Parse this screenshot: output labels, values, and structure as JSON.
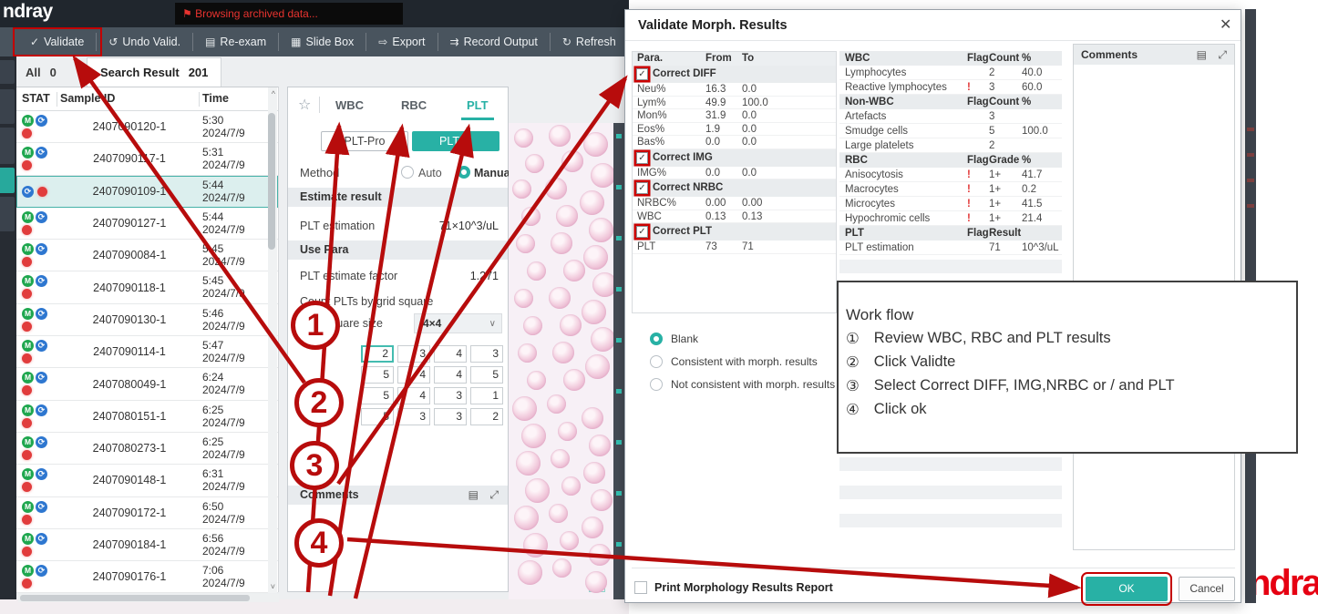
{
  "topbar": {
    "logo": "ndray",
    "flag": "⚑",
    "notice": "Browsing archived data..."
  },
  "toolbar": {
    "items": [
      {
        "name": "toolbar-button-validate",
        "icon_name": "validate-icon",
        "icon": "✓",
        "label": "Validate",
        "validate": true
      },
      {
        "name": "toolbar-button-undo-validate",
        "icon_name": "undo-validate-icon",
        "icon": "↺",
        "label": "Undo Valid."
      },
      {
        "name": "toolbar-button-re-exam",
        "icon_name": "re-exam-icon",
        "icon": "▤",
        "label": "Re-exam"
      },
      {
        "name": "toolbar-button-slide-box",
        "icon_name": "slide-box-icon",
        "icon": "▦",
        "label": "Slide Box"
      },
      {
        "name": "toolbar-button-export",
        "icon_name": "export-icon",
        "icon": "⇨",
        "label": "Export"
      },
      {
        "name": "toolbar-button-record-output",
        "icon_name": "record-output-icon",
        "icon": "⇉",
        "label": "Record Output"
      },
      {
        "name": "toolbar-button-refresh",
        "icon_name": "refresh-icon",
        "icon": "↻",
        "label": "Refresh"
      },
      {
        "name": "toolbar-button-edit",
        "icon_name": "edit-pencil-icon",
        "icon": "✎",
        "label": ""
      }
    ]
  },
  "samples": {
    "tab_all_label": "All",
    "tab_all_count": "0",
    "tab_search_label": "Search Result",
    "tab_search_count": "201",
    "columns": {
      "stat": "STAT",
      "id": "Sample ID",
      "time": "Time"
    },
    "scroll_up": "^",
    "scroll_down": "˅",
    "m_glyph": "M",
    "sync_glyph": "⟳",
    "rows": [
      {
        "id": "2407090120-1",
        "time": "5:30",
        "date": "2024/7/9",
        "m": true,
        "sync": true,
        "dot": true
      },
      {
        "id": "2407090117-1",
        "time": "5:31",
        "date": "2024/7/9",
        "m": true,
        "sync": true,
        "dot": true
      },
      {
        "id": "2407090109-1",
        "time": "5:44",
        "date": "2024/7/9",
        "selected": true,
        "sync": true,
        "dot": true
      },
      {
        "id": "2407090127-1",
        "time": "5:44",
        "date": "2024/7/9",
        "m": true,
        "sync": true,
        "dot": true
      },
      {
        "id": "2407090084-1",
        "time": "5:45",
        "date": "2024/7/9",
        "m": true,
        "sync": true,
        "dot": true
      },
      {
        "id": "2407090118-1",
        "time": "5:45",
        "date": "2024/7/9",
        "m": true,
        "sync": true,
        "dot": true
      },
      {
        "id": "2407090130-1",
        "time": "5:46",
        "date": "2024/7/9",
        "m": true,
        "sync": true,
        "dot": true
      },
      {
        "id": "2407090114-1",
        "time": "5:47",
        "date": "2024/7/9",
        "m": true,
        "sync": true,
        "dot": true
      },
      {
        "id": "2407080049-1",
        "time": "6:24",
        "date": "2024/7/9",
        "m": true,
        "sync": true,
        "dot": true
      },
      {
        "id": "2407080151-1",
        "time": "6:25",
        "date": "2024/7/9",
        "m": true,
        "sync": true,
        "dot": true
      },
      {
        "id": "2407080273-1",
        "time": "6:25",
        "date": "2024/7/9",
        "m": true,
        "sync": true,
        "dot": true
      },
      {
        "id": "2407090148-1",
        "time": "6:31",
        "date": "2024/7/9",
        "m": true,
        "sync": true,
        "dot": true
      },
      {
        "id": "2407090172-1",
        "time": "6:50",
        "date": "2024/7/9",
        "m": true,
        "sync": true,
        "dot": true
      },
      {
        "id": "2407090184-1",
        "time": "6:56",
        "date": "2024/7/9",
        "m": true,
        "sync": true,
        "dot": true
      },
      {
        "id": "2407090176-1",
        "time": "7:06",
        "date": "2024/7/9",
        "m": true,
        "sync": true,
        "dot": true
      }
    ]
  },
  "panel": {
    "star": "☆",
    "tabs": [
      {
        "label": "WBC"
      },
      {
        "label": "RBC"
      },
      {
        "label": "PLT",
        "active": true
      }
    ],
    "plt_pro": "PLT-Pro",
    "plt_m": "PLT-M",
    "method_label": "Method",
    "auto_label": "Auto",
    "manual_label": "Manual",
    "estimate_section": "Estimate result",
    "plt_estimation_label": "PLT estimation",
    "plt_estimation_value": "71×10^3/uL",
    "use_para_section": "Use Para",
    "factor_label": "PLT estimate factor",
    "factor_value": "1.271",
    "count_label": "Count PLTs by grid square",
    "grid_size_label": "Grid square size",
    "grid_size_value": "4×4",
    "chevron": "∨",
    "grid_cells": [
      {
        "v": "2",
        "hl": true
      },
      {
        "v": "3"
      },
      {
        "v": "4"
      },
      {
        "v": "3"
      },
      {
        "v": "5"
      },
      {
        "v": "4"
      },
      {
        "v": "4"
      },
      {
        "v": "5"
      },
      {
        "v": "5"
      },
      {
        "v": "4"
      },
      {
        "v": "3"
      },
      {
        "v": "1"
      },
      {
        "v": "5"
      },
      {
        "v": "3"
      },
      {
        "v": "3"
      },
      {
        "v": "2"
      }
    ],
    "comments_label": "Comments",
    "notes_icon": "▤",
    "expand_icon": "⤢"
  },
  "dialog": {
    "title": "Validate Morph. Results",
    "close": "✕",
    "check_glyph": "✓",
    "para_columns": {
      "c1": "Para.",
      "c2": "From",
      "c3": "To"
    },
    "para_rows": [
      {
        "section": true,
        "checked": true,
        "label": "Correct DIFF"
      },
      {
        "label": "Neu%",
        "from": "16.3",
        "to": "0.0"
      },
      {
        "label": "Lym%",
        "from": "49.9",
        "to": "100.0"
      },
      {
        "label": "Mon%",
        "from": "31.9",
        "to": "0.0"
      },
      {
        "label": "Eos%",
        "from": "1.9",
        "to": "0.0"
      },
      {
        "label": "Bas%",
        "from": "0.0",
        "to": "0.0"
      },
      {
        "section": true,
        "checked": true,
        "label": "Correct IMG"
      },
      {
        "label": "IMG%",
        "from": "0.0",
        "to": "0.0"
      },
      {
        "section": true,
        "checked": true,
        "label": "Correct NRBC"
      },
      {
        "label": "NRBC%",
        "from": "0.00",
        "to": "0.00"
      },
      {
        "label": "WBC",
        "from": "0.13",
        "to": "0.13"
      },
      {
        "section": true,
        "checked": true,
        "label": "Correct PLT"
      },
      {
        "label": "PLT",
        "from": "73",
        "to": "71"
      }
    ],
    "result_rows": [
      {
        "header": true,
        "name": "WBC",
        "flag": "Flag",
        "val": "Count",
        "pct": "%"
      },
      {
        "name": "Lymphocytes",
        "flag": "",
        "val": "2",
        "pct": "40.0"
      },
      {
        "name": "Reactive lymphocytes",
        "flag": "!",
        "val": "3",
        "pct": "60.0"
      },
      {
        "header": true,
        "name": "Non-WBC",
        "flag": "Flag",
        "val": "Count",
        "pct": "%"
      },
      {
        "name": "Artefacts",
        "flag": "",
        "val": "3",
        "pct": ""
      },
      {
        "name": "Smudge cells",
        "flag": "",
        "val": "5",
        "pct": "100.0"
      },
      {
        "name": "Large platelets",
        "flag": "",
        "val": "2",
        "pct": ""
      },
      {
        "header": true,
        "name": "RBC",
        "flag": "Flag",
        "val": "Grade",
        "pct": "%"
      },
      {
        "name": "Anisocytosis",
        "flag": "!",
        "val": "1+",
        "pct": "41.7"
      },
      {
        "name": "Macrocytes",
        "flag": "!",
        "val": "1+",
        "pct": "0.2"
      },
      {
        "name": "Microcytes",
        "flag": "!",
        "val": "1+",
        "pct": "41.5"
      },
      {
        "name": "Hypochromic cells",
        "flag": "!",
        "val": "1+",
        "pct": "21.4"
      },
      {
        "header": true,
        "name": "PLT",
        "flag": "Flag",
        "val": "Result",
        "pct": ""
      },
      {
        "name": "PLT estimation",
        "flag": "",
        "val": "71",
        "pct": "10^3/uL"
      }
    ],
    "comments_label": "Comments",
    "notes_icon": "▤",
    "expand_icon": "⤢",
    "radios": [
      {
        "label": "Blank",
        "on": true
      },
      {
        "label": "Consistent with morph. results"
      },
      {
        "label": "Not consistent with morph. results"
      }
    ],
    "print_label": "Print Morphology Results Report",
    "ok_label": "OK",
    "cancel_label": "Cancel"
  },
  "workflow": {
    "title": "Work flow",
    "steps": [
      {
        "num": "①",
        "text": "Review WBC, RBC and PLT results"
      },
      {
        "num": "②",
        "text": "Click Validte"
      },
      {
        "num": "③",
        "text": "Select Correct DIFF, IMG,NRBC or / and PLT"
      },
      {
        "num": "④",
        "text": "Click ok"
      }
    ]
  },
  "annotations": {
    "circles": [
      {
        "n": "1",
        "cls": "c1"
      },
      {
        "n": "2",
        "cls": "c2"
      },
      {
        "n": "3",
        "cls": "c3"
      },
      {
        "n": "4",
        "cls": "c4"
      }
    ]
  },
  "brand": {
    "logo": "ndray"
  },
  "colors": {
    "accent": "#28b1a5",
    "annotation": "#b70c0c",
    "flag_red": "#e23434",
    "brand_red": "#e60012",
    "stat_green": "#1fa74f",
    "sync_blue": "#2e77d0"
  }
}
